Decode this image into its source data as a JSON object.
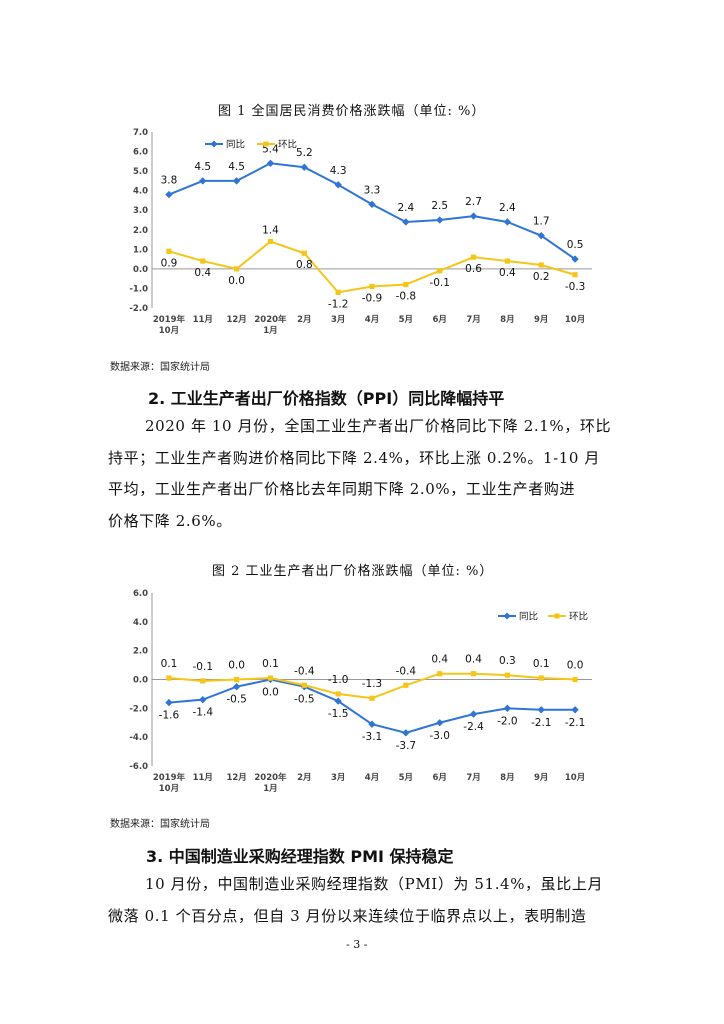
{
  "figure1": {
    "caption": "图 1    全国居民消费价格涨跌幅（单位: %）",
    "source": "数据来源：国家统计局",
    "chart_data": {
      "type": "line",
      "title": "全国居民消费价格涨跌幅（单位: %）",
      "categories": [
        "2019年\n10月",
        "11月",
        "12月",
        "2020年\n1月",
        "2月",
        "3月",
        "4月",
        "5月",
        "6月",
        "7月",
        "8月",
        "9月",
        "10月"
      ],
      "ylim": [
        -2.0,
        7.0
      ],
      "yticks": [
        "7.0",
        "6.0",
        "5.0",
        "4.0",
        "3.0",
        "2.0",
        "1.0",
        "0.0",
        "-1.0",
        "-2.0"
      ],
      "legend": "top",
      "series": [
        {
          "name": "同比",
          "color": "#2F75D6",
          "values": [
            3.8,
            4.5,
            4.5,
            5.4,
            5.2,
            4.3,
            3.3,
            2.4,
            2.5,
            2.7,
            2.4,
            1.7,
            0.5
          ],
          "labels": [
            "3.8",
            "4.5",
            "4.5",
            "5.4",
            "5.2",
            "4.3",
            "3.3",
            "2.4",
            "2.5",
            "2.7",
            "2.4",
            "1.7",
            "0.5"
          ]
        },
        {
          "name": "环比",
          "color": "#F5C518",
          "values": [
            0.9,
            0.4,
            0.0,
            1.4,
            0.8,
            -1.2,
            -0.9,
            -0.8,
            -0.1,
            0.6,
            0.4,
            0.2,
            -0.3
          ],
          "labels": [
            "0.9",
            "0.4",
            "0.0",
            "1.4",
            "0.8",
            "-1.2",
            "-0.9",
            "-0.8",
            "-0.1",
            "0.6",
            "0.4",
            "0.2",
            "-0.3"
          ]
        }
      ]
    }
  },
  "section2": {
    "heading": "2. 工业生产者出厂价格指数（PPI）同比降幅持平",
    "lines": [
      "2020 年 10 月份，全国工业生产者出厂价格同比下降 2.1%，环比",
      "持平；工业生产者购进价格同比下降 2.4%，环比上涨 0.2%。1-10 月",
      "平均，工业生产者出厂价格比去年同期下降  2.0%，工业生产者购进",
      "价格下降 2.6%。"
    ]
  },
  "figure2": {
    "caption": "图 2    工业生产者出厂价格涨跌幅（单位: %）",
    "source": "数据来源：国家统计局",
    "chart_data": {
      "type": "line",
      "title": "工业生产者出厂价格涨跌幅（单位: %）",
      "categories": [
        "2019年\n10月",
        "11月",
        "12月",
        "2020年\n1月",
        "2月",
        "3月",
        "4月",
        "5月",
        "6月",
        "7月",
        "8月",
        "9月",
        "10月"
      ],
      "ylim": [
        -6.0,
        6.0
      ],
      "yticks": [
        "6.0",
        "4.0",
        "2.0",
        "0.0",
        "-2.0",
        "-4.0",
        "-6.0"
      ],
      "legend": "top-right",
      "series": [
        {
          "name": "同比",
          "color": "#2F75D6",
          "values": [
            -1.6,
            -1.4,
            -0.5,
            0.0,
            -0.5,
            -1.5,
            -3.1,
            -3.7,
            -3.0,
            -2.4,
            -2.0,
            -2.1,
            -2.1
          ],
          "labels": [
            "-1.6",
            "-1.4",
            "-0.5",
            "0.0",
            "-0.5",
            "-1.5",
            "-3.1",
            "-3.7",
            "-3.0",
            "-2.4",
            "-2.0",
            "-2.1",
            "-2.1"
          ]
        },
        {
          "name": "环比",
          "color": "#F5C518",
          "values": [
            0.1,
            -0.1,
            0.0,
            0.1,
            -0.4,
            -1.0,
            -1.3,
            -0.4,
            0.4,
            0.4,
            0.3,
            0.1,
            0.0
          ],
          "labels": [
            "0.1",
            "-0.1",
            "0.0",
            "0.1",
            "-0.4",
            "-1.0",
            "-1.3",
            "-0.4",
            "0.4",
            "0.4",
            "0.3",
            "0.1",
            "0.0"
          ]
        }
      ]
    }
  },
  "section3": {
    "heading": "3. 中国制造业采购经理指数 PMI 保持稳定",
    "lines": [
      "10 月份，中国制造业采购经理指数（PMI）为 51.4%，虽比上月",
      "微落 0.1 个百分点，但自 3 月份以来连续位于临界点以上，表明制造"
    ]
  },
  "page_number": "- 3 -"
}
